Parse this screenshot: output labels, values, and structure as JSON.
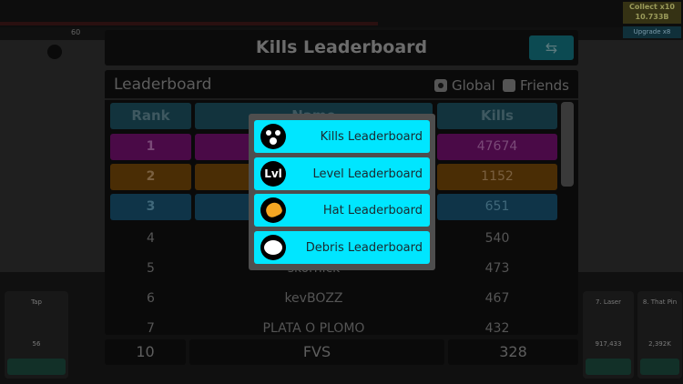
{
  "background": {
    "collect_label": "Collect x10",
    "collect_value": "10.733B",
    "upgrade_label": "Upgrade x8",
    "level_value": "60",
    "cards": [
      {
        "title": "Tap",
        "value": "56"
      },
      {
        "title": "7. Laser",
        "value": "917,433"
      },
      {
        "title": "8. That Pin",
        "value": "2,392K"
      }
    ]
  },
  "modal": {
    "title": "Kills Leaderboard",
    "swap_icon": "swap-arrows-icon"
  },
  "panel": {
    "heading": "Leaderboard",
    "filters": [
      {
        "label": "Global",
        "checked": true
      },
      {
        "label": "Friends",
        "checked": false
      }
    ]
  },
  "table": {
    "headers": [
      "Rank",
      "Name",
      "Kills"
    ],
    "rows": [
      {
        "rank": "1",
        "name": "",
        "kills": "47674",
        "color": "#ff00f0"
      },
      {
        "rank": "2",
        "name": "",
        "kills": "1152",
        "color": "#ff9a00"
      },
      {
        "rank": "3",
        "name": "",
        "kills": "651",
        "color": "#0096e0"
      },
      {
        "rank": "4",
        "name": "",
        "kills": "540"
      },
      {
        "rank": "5",
        "name": "skornick",
        "kills": "473"
      },
      {
        "rank": "6",
        "name": "kevBOZZ",
        "kills": "467"
      },
      {
        "rank": "7",
        "name": "PLATA O PLOMO",
        "kills": "432"
      }
    ],
    "self": {
      "rank": "10",
      "name": "FVS",
      "kills": "328"
    }
  },
  "popup": {
    "accent": "#00e6ff",
    "items": [
      {
        "label": "Kills Leaderboard",
        "icon": "shocked-face-icon"
      },
      {
        "label": "Level Leaderboard",
        "icon": "lvl-badge-icon",
        "icon_text": "Lvl"
      },
      {
        "label": "Hat Leaderboard",
        "icon": "hard-hat-icon"
      },
      {
        "label": "Debris Leaderboard",
        "icon": "debris-cloud-icon"
      }
    ]
  }
}
